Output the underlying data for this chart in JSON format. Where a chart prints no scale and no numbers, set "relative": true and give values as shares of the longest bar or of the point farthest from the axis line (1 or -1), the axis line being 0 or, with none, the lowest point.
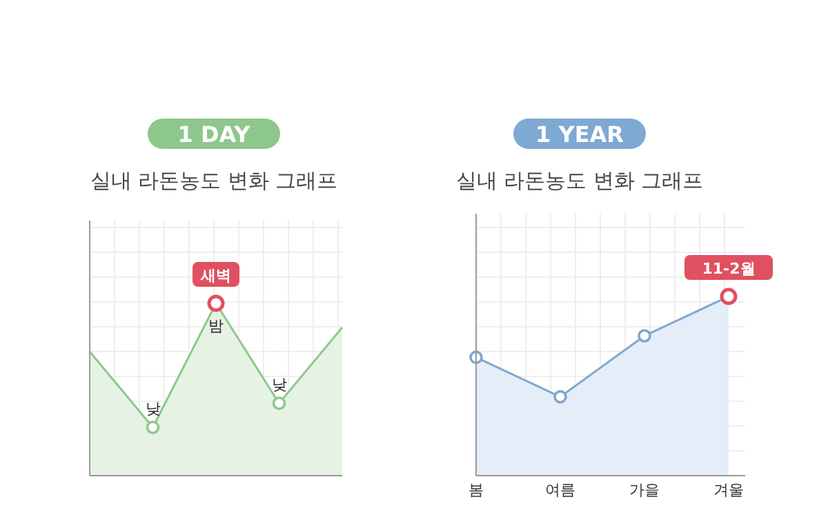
{
  "chart_data": [
    {
      "type": "area",
      "title": "1 DAY",
      "subtitle": "실내 라돈농도 변화 그래프",
      "categories": [
        null,
        null,
        null,
        null,
        null
      ],
      "relative": true,
      "grid": true,
      "marker": "circle",
      "series": [
        {
          "color": "#8cc98a",
          "values": [
            0.72,
            0.28,
            1,
            0.42,
            0.86
          ]
        }
      ],
      "annotations": [
        {
          "text": "새벽",
          "y": 1
        },
        {
          "text": "밤",
          "y": 1
        },
        {
          "text": "낮",
          "y": 0.28
        },
        {
          "text": "낮",
          "y": 0.42
        }
      ]
    },
    {
      "type": "area",
      "title": "1 YEAR",
      "subtitle": "실내 라돈농도 변화 그래프",
      "categories": [
        "봄",
        "여름",
        "가을",
        "겨울"
      ],
      "relative": true,
      "grid": true,
      "marker": "circle",
      "series": [
        {
          "color": "#7fa7cf",
          "values": [
            0.66,
            0.44,
            0.78,
            1
          ]
        }
      ],
      "annotations": [
        {
          "text": "11-2월",
          "y": 1
        }
      ]
    }
  ]
}
